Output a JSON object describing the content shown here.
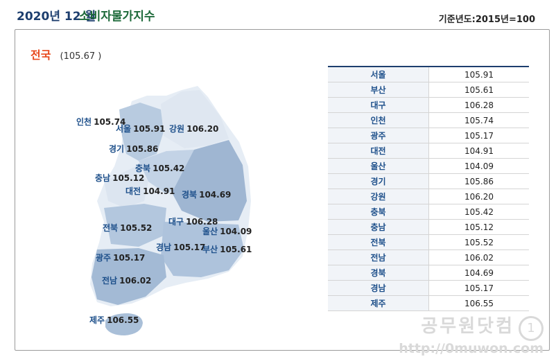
{
  "header": {
    "year_month": "2020년 12 월",
    "title": "소비자물가지수",
    "base_year": "기준년도:2015년=100"
  },
  "national": {
    "label": "전국",
    "value": "(105.67 )"
  },
  "regions": [
    {
      "name": "서울",
      "value": "105.91"
    },
    {
      "name": "부산",
      "value": "105.61"
    },
    {
      "name": "대구",
      "value": "106.28"
    },
    {
      "name": "인천",
      "value": "105.74"
    },
    {
      "name": "광주",
      "value": "105.17"
    },
    {
      "name": "대전",
      "value": "104.91"
    },
    {
      "name": "울산",
      "value": "104.09"
    },
    {
      "name": "경기",
      "value": "105.86"
    },
    {
      "name": "강원",
      "value": "106.20"
    },
    {
      "name": "충북",
      "value": "105.42"
    },
    {
      "name": "충남",
      "value": "105.12"
    },
    {
      "name": "전북",
      "value": "105.52"
    },
    {
      "name": "전남",
      "value": "106.02"
    },
    {
      "name": "경북",
      "value": "104.69"
    },
    {
      "name": "경남",
      "value": "105.17"
    },
    {
      "name": "제주",
      "value": "106.55"
    }
  ],
  "watermark": {
    "name": "공무원닷컴",
    "mark": "1",
    "url": "http://0muwon.com"
  },
  "colors": {
    "title_year": "#1d3e6e",
    "title_main": "#1e6a3a",
    "national_label": "#e8491d",
    "region_name": "#1d4f8a",
    "table_header_line": "#1d3e6e",
    "map_light": "#e6edf5",
    "map_mid": "#b8cbe0",
    "map_dark": "#9fb6d2"
  }
}
